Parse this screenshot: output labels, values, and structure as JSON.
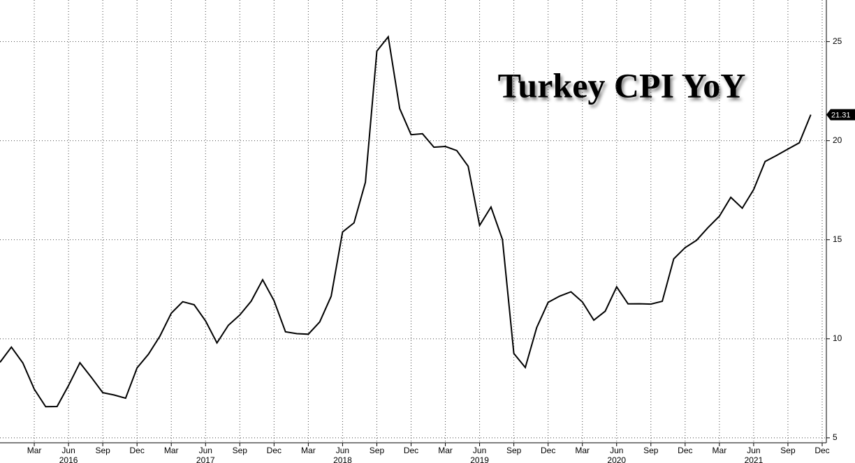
{
  "chart_data": {
    "type": "line",
    "title": "Turkey CPI YoY",
    "color": "#000000",
    "grid": true,
    "x": [
      "2015-12",
      "2016-01",
      "2016-02",
      "2016-03",
      "2016-04",
      "2016-05",
      "2016-06",
      "2016-07",
      "2016-08",
      "2016-09",
      "2016-10",
      "2016-11",
      "2016-12",
      "2017-01",
      "2017-02",
      "2017-03",
      "2017-04",
      "2017-05",
      "2017-06",
      "2017-07",
      "2017-08",
      "2017-09",
      "2017-10",
      "2017-11",
      "2017-12",
      "2018-01",
      "2018-02",
      "2018-03",
      "2018-04",
      "2018-05",
      "2018-06",
      "2018-07",
      "2018-08",
      "2018-09",
      "2018-10",
      "2018-11",
      "2018-12",
      "2019-01",
      "2019-02",
      "2019-03",
      "2019-04",
      "2019-05",
      "2019-06",
      "2019-07",
      "2019-08",
      "2019-09",
      "2019-10",
      "2019-11",
      "2019-12",
      "2020-01",
      "2020-02",
      "2020-03",
      "2020-04",
      "2020-05",
      "2020-06",
      "2020-07",
      "2020-08",
      "2020-09",
      "2020-10",
      "2020-11",
      "2020-12",
      "2021-01",
      "2021-02",
      "2021-03",
      "2021-04",
      "2021-05",
      "2021-06",
      "2021-07",
      "2021-08",
      "2021-09",
      "2021-10",
      "2021-11"
    ],
    "values": [
      8.81,
      9.58,
      8.78,
      7.46,
      6.57,
      6.58,
      7.64,
      8.79,
      8.05,
      7.28,
      7.16,
      7.0,
      8.53,
      9.22,
      10.13,
      11.29,
      11.87,
      11.72,
      10.9,
      9.79,
      10.68,
      11.2,
      11.9,
      12.98,
      11.92,
      10.35,
      10.26,
      10.23,
      10.85,
      12.15,
      15.39,
      15.85,
      17.9,
      24.52,
      25.24,
      21.62,
      20.3,
      20.35,
      19.67,
      19.71,
      19.5,
      18.71,
      15.72,
      16.65,
      15.01,
      9.26,
      8.55,
      10.56,
      11.84,
      12.15,
      12.37,
      11.86,
      10.94,
      11.39,
      12.62,
      11.76,
      11.77,
      11.75,
      11.89,
      14.03,
      14.6,
      14.97,
      15.61,
      16.19,
      17.14,
      16.59,
      17.53,
      18.95,
      19.25,
      19.58,
      19.89,
      21.31
    ],
    "xlim": [
      "2015-12",
      "2021-12"
    ],
    "xticks": [
      {
        "value": "2016-03",
        "label": "Mar"
      },
      {
        "value": "2016-06",
        "label": "Jun"
      },
      {
        "value": "2016-09",
        "label": "Sep"
      },
      {
        "value": "2016-12",
        "label": "Dec"
      },
      {
        "value": "2017-03",
        "label": "Mar"
      },
      {
        "value": "2017-06",
        "label": "Jun"
      },
      {
        "value": "2017-09",
        "label": "Sep"
      },
      {
        "value": "2017-12",
        "label": "Dec"
      },
      {
        "value": "2018-03",
        "label": "Mar"
      },
      {
        "value": "2018-06",
        "label": "Jun"
      },
      {
        "value": "2018-09",
        "label": "Sep"
      },
      {
        "value": "2018-12",
        "label": "Dec"
      },
      {
        "value": "2019-03",
        "label": "Mar"
      },
      {
        "value": "2019-06",
        "label": "Jun"
      },
      {
        "value": "2019-09",
        "label": "Sep"
      },
      {
        "value": "2019-12",
        "label": "Dec"
      },
      {
        "value": "2020-03",
        "label": "Mar"
      },
      {
        "value": "2020-06",
        "label": "Jun"
      },
      {
        "value": "2020-09",
        "label": "Sep"
      },
      {
        "value": "2020-12",
        "label": "Dec"
      },
      {
        "value": "2021-03",
        "label": "Mar"
      },
      {
        "value": "2021-06",
        "label": "Jun"
      },
      {
        "value": "2021-09",
        "label": "Sep"
      },
      {
        "value": "2021-12",
        "label": "Dec"
      }
    ],
    "year_labels": [
      {
        "value": "2016-06",
        "label": "2016"
      },
      {
        "value": "2017-06",
        "label": "2017"
      },
      {
        "value": "2018-06",
        "label": "2018"
      },
      {
        "value": "2019-06",
        "label": "2019"
      },
      {
        "value": "2020-06",
        "label": "2020"
      },
      {
        "value": "2021-06",
        "label": "2021"
      }
    ],
    "ylim": [
      4.75,
      27.1
    ],
    "yticks": [
      5,
      10,
      15,
      20,
      25
    ]
  }
}
